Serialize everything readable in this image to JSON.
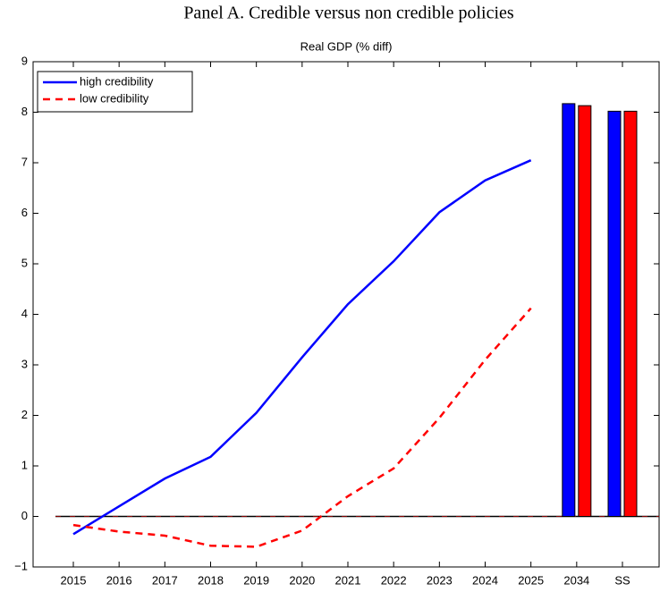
{
  "chart_data": {
    "type": "line",
    "title": "Panel A. Credible versus non credible policies",
    "subtitle": "Real GDP (% diff)",
    "categories": [
      "2015",
      "2016",
      "2017",
      "2018",
      "2019",
      "2020",
      "2021",
      "2022",
      "2023",
      "2024",
      "2025",
      "2034",
      "SS"
    ],
    "series": [
      {
        "name": "high credibility",
        "color": "#0000ff",
        "dash": false,
        "values": [
          -0.35,
          0.2,
          0.75,
          1.18,
          2.05,
          3.15,
          4.2,
          5.05,
          6.02,
          6.65,
          7.05,
          null,
          null
        ],
        "bar_values": [
          null,
          null,
          null,
          null,
          null,
          null,
          null,
          null,
          null,
          null,
          null,
          8.17,
          8.02
        ]
      },
      {
        "name": "low credibility",
        "color": "#ff0000",
        "dash": true,
        "values": [
          -0.17,
          -0.3,
          -0.38,
          -0.58,
          -0.6,
          -0.28,
          0.4,
          0.95,
          1.95,
          3.1,
          4.12,
          null,
          null
        ],
        "bar_values": [
          null,
          null,
          null,
          null,
          null,
          null,
          null,
          null,
          null,
          null,
          null,
          8.13,
          8.02
        ]
      }
    ],
    "ylim": [
      -1,
      9
    ],
    "yticks": [
      {
        "value": -1,
        "label": "−1"
      },
      0,
      1,
      2,
      3,
      4,
      5,
      6,
      7,
      8,
      9
    ],
    "legend": "top-left",
    "grid": false
  }
}
